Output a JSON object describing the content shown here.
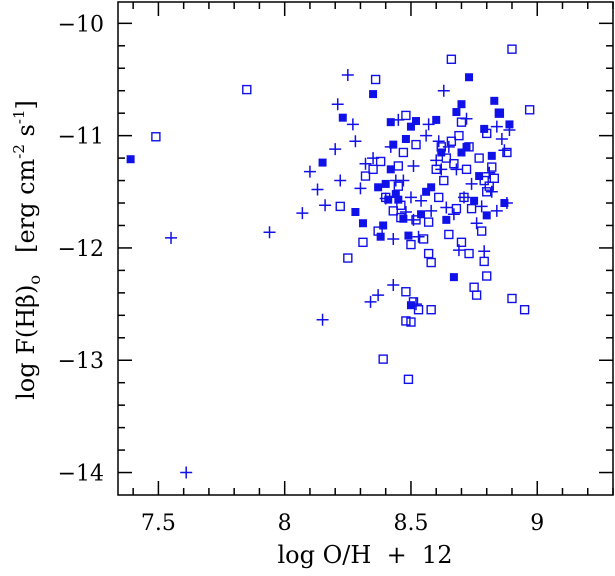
{
  "chart_data": {
    "type": "scatter",
    "xlabel": "log O/H  +  12",
    "ylabel": {
      "main": "log F(Hβ)",
      "sub": "o",
      "units": "[erg cm",
      "exp1": "-2",
      "units2": " s",
      "exp2": "-1",
      "units3": "]"
    },
    "xlim": [
      7.35,
      9.3
    ],
    "ylim": [
      -14.2,
      -9.8
    ],
    "xticks": [
      7.5,
      8,
      8.5,
      9
    ],
    "xtick_labels": [
      "7.5",
      "8",
      "8.5",
      "9"
    ],
    "yticks": [
      -14,
      -13,
      -12,
      -11,
      -10
    ],
    "ytick_labels": [
      "−14",
      "−13",
      "−12",
      "−11",
      "−10"
    ],
    "grid": false,
    "color": "#1010e8",
    "series": [
      {
        "marker": "filled-square",
        "points": [
          [
            7.39,
            -11.21
          ],
          [
            8.15,
            -11.24
          ],
          [
            8.23,
            -10.84
          ],
          [
            8.35,
            -10.63
          ],
          [
            8.28,
            -11.68
          ],
          [
            8.38,
            -11.9
          ],
          [
            8.37,
            -11.46
          ],
          [
            8.4,
            -11.43
          ],
          [
            8.41,
            -11.57
          ],
          [
            8.42,
            -10.88
          ],
          [
            8.43,
            -11.08
          ],
          [
            8.44,
            -11.52
          ],
          [
            8.45,
            -11.57
          ],
          [
            8.47,
            -11.74
          ],
          [
            8.49,
            -11.89
          ],
          [
            8.5,
            -10.92
          ],
          [
            8.5,
            -12.51
          ],
          [
            8.52,
            -10.87
          ],
          [
            8.54,
            -11.7
          ],
          [
            8.56,
            -11.5
          ],
          [
            8.6,
            -10.86
          ],
          [
            8.62,
            -11.15
          ],
          [
            8.64,
            -11.75
          ],
          [
            8.67,
            -12.26
          ],
          [
            8.68,
            -10.79
          ],
          [
            8.7,
            -11.15
          ],
          [
            8.7,
            -10.72
          ],
          [
            8.72,
            -11.1
          ],
          [
            8.75,
            -11.58
          ],
          [
            8.77,
            -11.36
          ],
          [
            8.79,
            -10.94
          ],
          [
            8.8,
            -11.71
          ],
          [
            8.82,
            -11.18
          ],
          [
            8.83,
            -10.69
          ],
          [
            8.85,
            -10.8
          ],
          [
            8.87,
            -11.6
          ],
          [
            8.89,
            -10.9
          ],
          [
            8.73,
            -10.48
          ],
          [
            8.39,
            -11.8
          ],
          [
            8.31,
            -11.78
          ],
          [
            8.48,
            -11.03
          ],
          [
            8.58,
            -11.46
          ],
          [
            8.42,
            -11.3
          ]
        ]
      },
      {
        "marker": "open-square",
        "points": [
          [
            7.49,
            -11.01
          ],
          [
            7.85,
            -10.59
          ],
          [
            8.22,
            -11.63
          ],
          [
            8.25,
            -12.09
          ],
          [
            8.31,
            -11.95
          ],
          [
            8.32,
            -11.36
          ],
          [
            8.35,
            -11.3
          ],
          [
            8.36,
            -10.5
          ],
          [
            8.37,
            -11.85
          ],
          [
            8.38,
            -11.23
          ],
          [
            8.39,
            -12.99
          ],
          [
            8.4,
            -11.55
          ],
          [
            8.43,
            -11.67
          ],
          [
            8.45,
            -11.45
          ],
          [
            8.45,
            -11.27
          ],
          [
            8.46,
            -11.62
          ],
          [
            8.47,
            -11.15
          ],
          [
            8.48,
            -10.82
          ],
          [
            8.48,
            -12.39
          ],
          [
            8.48,
            -12.65
          ],
          [
            8.49,
            -13.17
          ],
          [
            8.5,
            -12.66
          ],
          [
            8.5,
            -11.97
          ],
          [
            8.51,
            -12.48
          ],
          [
            8.52,
            -11.75
          ],
          [
            8.53,
            -12.55
          ],
          [
            8.55,
            -11.92
          ],
          [
            8.57,
            -12.05
          ],
          [
            8.57,
            -11.77
          ],
          [
            8.58,
            -12.13
          ],
          [
            8.58,
            -12.55
          ],
          [
            8.6,
            -11.3
          ],
          [
            8.61,
            -11.55
          ],
          [
            8.62,
            -11.1
          ],
          [
            8.63,
            -11.4
          ],
          [
            8.64,
            -11.2
          ],
          [
            8.65,
            -11.88
          ],
          [
            8.66,
            -10.32
          ],
          [
            8.66,
            -11.05
          ],
          [
            8.67,
            -11.25
          ],
          [
            8.68,
            -11.65
          ],
          [
            8.69,
            -11.0
          ],
          [
            8.7,
            -11.95
          ],
          [
            8.7,
            -10.88
          ],
          [
            8.71,
            -11.55
          ],
          [
            8.72,
            -11.3
          ],
          [
            8.73,
            -11.1
          ],
          [
            8.73,
            -12.05
          ],
          [
            8.75,
            -12.35
          ],
          [
            8.76,
            -12.42
          ],
          [
            8.77,
            -11.2
          ],
          [
            8.78,
            -11.85
          ],
          [
            8.79,
            -12.12
          ],
          [
            8.79,
            -11.4
          ],
          [
            8.8,
            -11.5
          ],
          [
            8.8,
            -10.98
          ],
          [
            8.8,
            -12.25
          ],
          [
            8.81,
            -11.45
          ],
          [
            8.82,
            -11.28
          ],
          [
            8.83,
            -11.38
          ],
          [
            8.85,
            -10.8
          ],
          [
            8.88,
            -11.15
          ],
          [
            8.9,
            -12.45
          ],
          [
            8.9,
            -10.23
          ],
          [
            8.95,
            -12.55
          ],
          [
            8.97,
            -10.77
          ],
          [
            8.52,
            -11.08
          ],
          [
            8.46,
            -11.73
          ],
          [
            8.74,
            -11.65
          ]
        ]
      },
      {
        "marker": "plus",
        "points": [
          [
            7.55,
            -11.91
          ],
          [
            7.61,
            -14.0
          ],
          [
            7.94,
            -11.86
          ],
          [
            8.07,
            -11.69
          ],
          [
            8.1,
            -11.32
          ],
          [
            8.13,
            -11.48
          ],
          [
            8.15,
            -12.64
          ],
          [
            8.16,
            -11.62
          ],
          [
            8.2,
            -11.12
          ],
          [
            8.21,
            -10.72
          ],
          [
            8.22,
            -11.4
          ],
          [
            8.25,
            -10.46
          ],
          [
            8.27,
            -10.9
          ],
          [
            8.28,
            -11.05
          ],
          [
            8.3,
            -11.47
          ],
          [
            8.32,
            -11.25
          ],
          [
            8.34,
            -12.48
          ],
          [
            8.35,
            -11.2
          ],
          [
            8.37,
            -12.42
          ],
          [
            8.4,
            -11.56
          ],
          [
            8.42,
            -11.1
          ],
          [
            8.43,
            -11.92
          ],
          [
            8.43,
            -12.33
          ],
          [
            8.44,
            -11.4
          ],
          [
            8.45,
            -10.86
          ],
          [
            8.47,
            -11.4
          ],
          [
            8.48,
            -11.68
          ],
          [
            8.5,
            -11.55
          ],
          [
            8.51,
            -11.75
          ],
          [
            8.52,
            -12.5
          ],
          [
            8.53,
            -11.9
          ],
          [
            8.54,
            -11.58
          ],
          [
            8.56,
            -11.0
          ],
          [
            8.57,
            -10.9
          ],
          [
            8.58,
            -11.67
          ],
          [
            8.6,
            -11.22
          ],
          [
            8.62,
            -11.3
          ],
          [
            8.63,
            -10.6
          ],
          [
            8.65,
            -11.1
          ],
          [
            8.67,
            -11.7
          ],
          [
            8.68,
            -11.3
          ],
          [
            8.69,
            -12.02
          ],
          [
            8.71,
            -11.55
          ],
          [
            8.72,
            -10.85
          ],
          [
            8.74,
            -11.43
          ],
          [
            8.76,
            -11.78
          ],
          [
            8.78,
            -11.63
          ],
          [
            8.79,
            -12.03
          ],
          [
            8.81,
            -11.33
          ],
          [
            8.82,
            -11.5
          ],
          [
            8.84,
            -11.67
          ],
          [
            8.86,
            -11.03
          ],
          [
            8.87,
            -11.13
          ],
          [
            8.88,
            -11.6
          ],
          [
            8.84,
            -10.92
          ],
          [
            8.89,
            -10.95
          ],
          [
            8.61,
            -11.05
          ],
          [
            8.51,
            -11.27
          ],
          [
            8.64,
            -11.64
          ]
        ]
      }
    ]
  }
}
